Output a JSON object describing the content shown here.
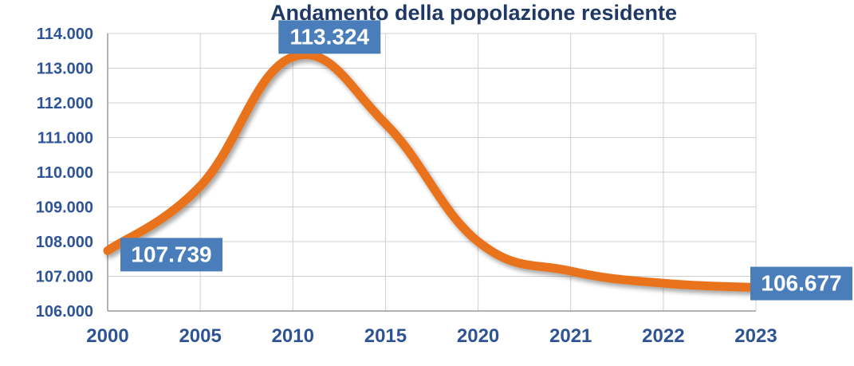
{
  "chart_data": {
    "type": "line",
    "title": "Andamento della popolazione residente",
    "xlabel": "",
    "ylabel": "",
    "categories": [
      "2000",
      "2005",
      "2010",
      "2015",
      "2020",
      "2021",
      "2022",
      "2023"
    ],
    "series": [
      {
        "values": [
          107739,
          109600,
          113324,
          111400,
          108000,
          107150,
          106800,
          106677
        ]
      }
    ],
    "ylim": [
      106000,
      114000
    ],
    "y_ticks": [
      "106.000",
      "107.000",
      "108.000",
      "109.000",
      "110.000",
      "111.000",
      "112.000",
      "113.000",
      "114.000"
    ],
    "data_labels": [
      {
        "category": "2000",
        "text": "107.739"
      },
      {
        "category": "2010",
        "text": "113.324"
      },
      {
        "category": "2023",
        "text": "106.677"
      }
    ],
    "grid": true,
    "legend": "none",
    "colors": {
      "line": "#E8731A",
      "label_box": "#4A7EBB",
      "label_text": "#ffffff",
      "axis_text": "#2F5496",
      "title": "#1F3864",
      "grid": "#D0D0D0"
    }
  }
}
